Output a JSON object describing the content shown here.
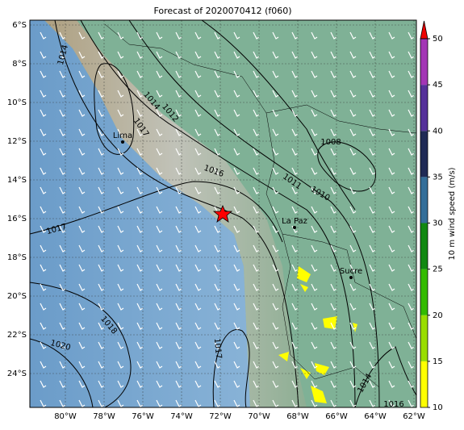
{
  "title": "Forecast of 2020070412 (f060)",
  "map": {
    "lat_ticks": [
      "6°S",
      "8°S",
      "10°S",
      "12°S",
      "14°S",
      "16°S",
      "18°S",
      "20°S",
      "22°S",
      "24°S"
    ],
    "lon_ticks": [
      "80°W",
      "78°W",
      "76°W",
      "74°W",
      "72°W",
      "70°W",
      "68°W",
      "66°W",
      "64°W",
      "62°W"
    ],
    "cities": [
      "Lima",
      "La Paz",
      "Sucre"
    ],
    "isobar_labels": [
      "1014",
      "1014",
      "1012",
      "1017",
      "1016",
      "1008",
      "1011",
      "1010",
      "1017",
      "1018",
      "1020",
      "1017",
      "1014",
      "1016"
    ]
  },
  "colorbar": {
    "label": "10 m wind speed (m/s)",
    "lim": [
      10,
      50
    ],
    "ticks": [
      10,
      15,
      20,
      25,
      30,
      35,
      40,
      45,
      50
    ],
    "colors": [
      "#ffff00",
      "#99dd00",
      "#33bb00",
      "#118811",
      "#336e99",
      "#1f2a55",
      "#55309a",
      "#a335b5"
    ],
    "extend_color": "#ee0000"
  }
}
